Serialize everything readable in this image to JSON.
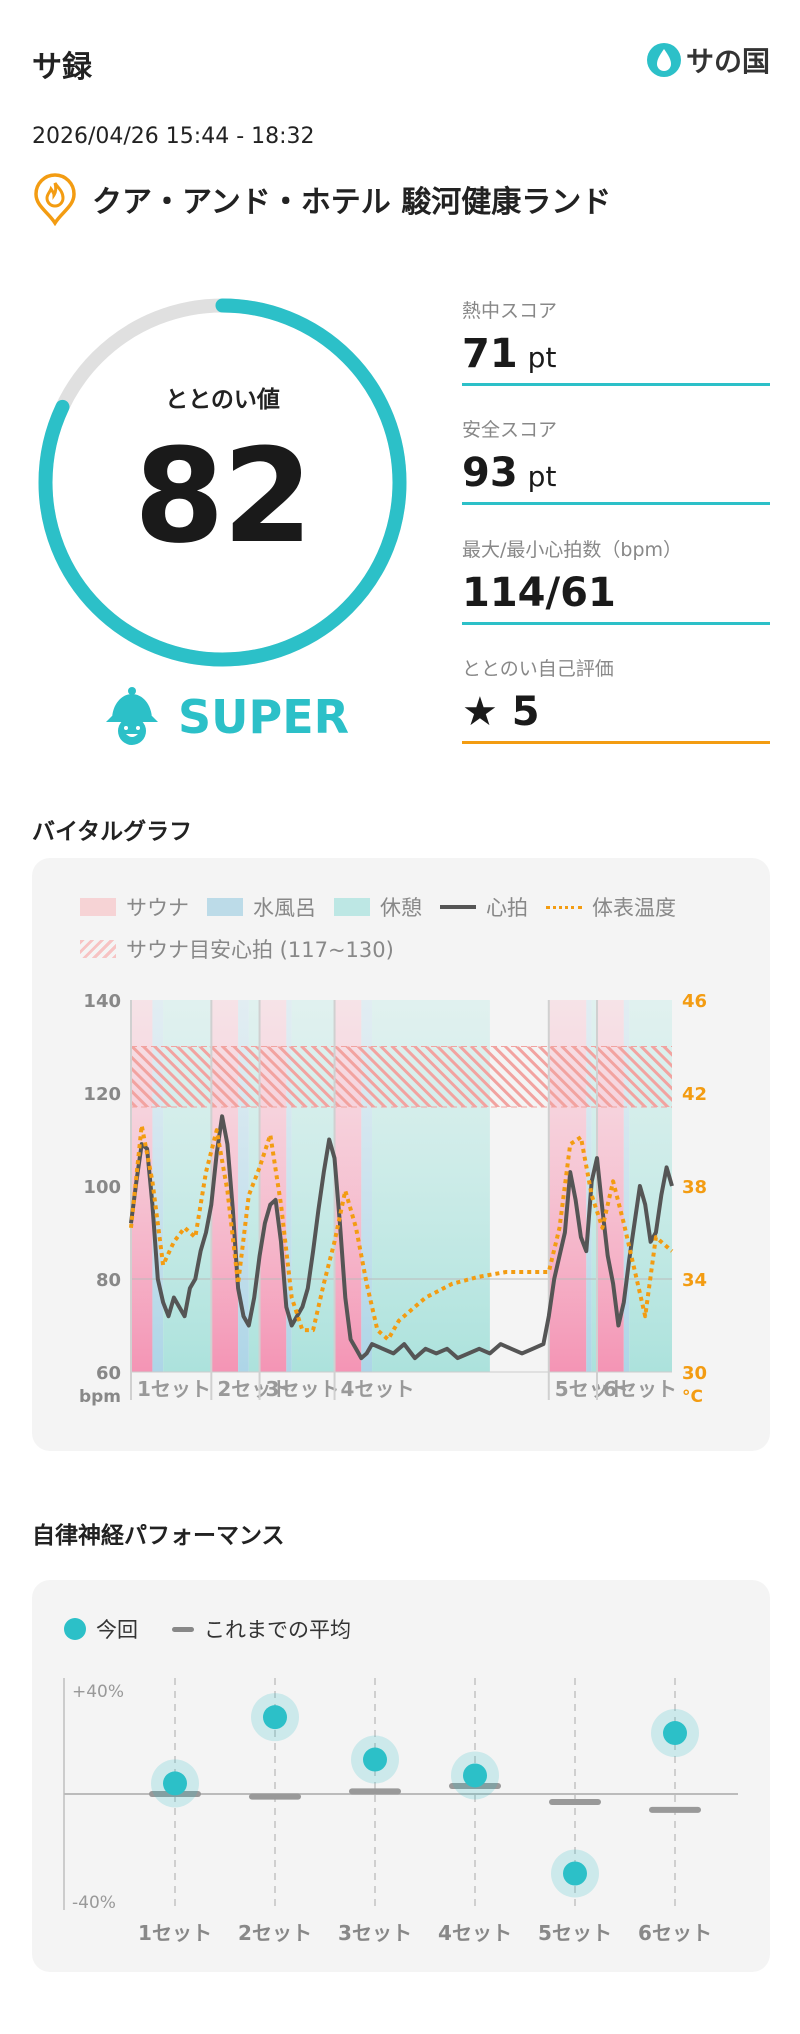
{
  "header": {
    "app_title": "サ録",
    "logo_text": "サの国",
    "logo_icon": "drop-icon"
  },
  "session": {
    "datetime": "2026/04/26 15:44 - 18:32",
    "facility_icon": "sauna-flame-pin-icon",
    "facility": "クア・アンド・ホテル 駿河健康ランド"
  },
  "totonoi": {
    "label": "ととのい値",
    "value": "82",
    "grade": "SUPER",
    "grade_icon": "sauna-hat-mascot-icon",
    "score_fraction": 0.82
  },
  "stats": [
    {
      "label": "熱中スコア",
      "value": "71",
      "unit": "pt"
    },
    {
      "label": "安全スコア",
      "value": "93",
      "unit": "pt"
    },
    {
      "label": "最大/最小心拍数（bpm）",
      "value": "114/61",
      "unit": ""
    },
    {
      "label": "ととのい自己評価",
      "value": "★ 5",
      "unit": ""
    }
  ],
  "colors": {
    "accent": "#2cc0c8",
    "orange": "#f39c12",
    "sauna": "#f6d3d5",
    "water": "#bcdbe8",
    "rest": "#bde7e4"
  },
  "vital": {
    "title": "バイタルグラフ",
    "legend": {
      "sauna": "サウナ",
      "water": "水風呂",
      "rest": "休憩",
      "hr": "心拍",
      "temp": "体表温度",
      "target": "サウナ目安心拍 (117~130)"
    }
  },
  "autonomic": {
    "title": "自律神経パフォーマンス",
    "legend": {
      "current": "今回",
      "average": "これまでの平均"
    }
  },
  "chart_data": [
    {
      "type": "line",
      "title": "バイタルグラフ",
      "ylabel_left": "bpm",
      "ylabel_right": "°C",
      "ylim_left": [
        60,
        140
      ],
      "ylim_right": [
        30,
        46
      ],
      "yticks_left": [
        "60",
        "80",
        "100",
        "120",
        "140"
      ],
      "yticks_right": [
        "30",
        "34",
        "38",
        "42",
        "46"
      ],
      "x_range_min": [
        0,
        168
      ],
      "target_band": [
        117,
        130
      ],
      "phases": [
        {
          "kind": "sauna",
          "start": 0,
          "end": 4
        },
        {
          "kind": "water",
          "start": 4,
          "end": 6
        },
        {
          "kind": "rest",
          "start": 6,
          "end": 15
        },
        {
          "kind": "sauna",
          "start": 15,
          "end": 20
        },
        {
          "kind": "water",
          "start": 20,
          "end": 22
        },
        {
          "kind": "rest",
          "start": 22,
          "end": 24
        },
        {
          "kind": "sauna",
          "start": 24,
          "end": 29
        },
        {
          "kind": "water",
          "start": 29,
          "end": 30
        },
        {
          "kind": "rest",
          "start": 30,
          "end": 38
        },
        {
          "kind": "sauna",
          "start": 38,
          "end": 43
        },
        {
          "kind": "water",
          "start": 43,
          "end": 45
        },
        {
          "kind": "rest",
          "start": 45,
          "end": 67
        },
        {
          "kind": "sauna",
          "start": 78,
          "end": 85
        },
        {
          "kind": "water",
          "start": 85,
          "end": 86
        },
        {
          "kind": "rest",
          "start": 86,
          "end": 87
        },
        {
          "kind": "sauna",
          "start": 87,
          "end": 92
        },
        {
          "kind": "water",
          "start": 92,
          "end": 93
        },
        {
          "kind": "rest",
          "start": 93,
          "end": 101
        }
      ],
      "set_markers": [
        {
          "label": "1セット",
          "x": 0
        },
        {
          "label": "2セット",
          "x": 15
        },
        {
          "label": "3セット",
          "x": 24
        },
        {
          "label": "4セット",
          "x": 38
        },
        {
          "label": "5セット",
          "x": 78
        },
        {
          "label": "6セット",
          "x": 87
        }
      ],
      "series": [
        {
          "name": "心拍",
          "axis": "left",
          "x": [
            0,
            1,
            2,
            3,
            4,
            5,
            6,
            7,
            8,
            9,
            10,
            11,
            12,
            13,
            14,
            15,
            16,
            17,
            18,
            19,
            20,
            21,
            22,
            23,
            24,
            25,
            26,
            27,
            28,
            29,
            30,
            31,
            32,
            33,
            34,
            35,
            36,
            37,
            38,
            39,
            40,
            41,
            42,
            43,
            44,
            45,
            47,
            49,
            51,
            53,
            55,
            57,
            59,
            61,
            63,
            65,
            67,
            69,
            71,
            73,
            75,
            77,
            78,
            79,
            80,
            81,
            82,
            83,
            84,
            85,
            86,
            87,
            88,
            89,
            90,
            91,
            92,
            93,
            94,
            95,
            96,
            97,
            98,
            99,
            100,
            101
          ],
          "values": [
            92,
            101,
            109,
            108,
            96,
            80,
            75,
            72,
            76,
            74,
            72,
            78,
            80,
            86,
            90,
            96,
            107,
            115,
            109,
            95,
            78,
            72,
            70,
            76,
            85,
            92,
            96,
            97,
            88,
            74,
            70,
            72,
            74,
            78,
            86,
            95,
            103,
            110,
            106,
            92,
            76,
            67,
            65,
            63,
            64,
            66,
            65,
            64,
            66,
            63,
            65,
            64,
            65,
            63,
            64,
            65,
            64,
            66,
            65,
            64,
            65,
            66,
            72,
            80,
            85,
            90,
            103,
            97,
            89,
            86,
            101,
            106,
            95,
            85,
            79,
            70,
            75,
            84,
            92,
            100,
            96,
            88,
            90,
            98,
            104,
            100
          ]
        },
        {
          "name": "体表温度",
          "axis": "right",
          "x": [
            0,
            2,
            4,
            6,
            8,
            10,
            12,
            14,
            16,
            18,
            20,
            22,
            24,
            26,
            28,
            30,
            32,
            34,
            36,
            38,
            40,
            42,
            44,
            46,
            48,
            50,
            55,
            60,
            65,
            70,
            75,
            78,
            80,
            82,
            84,
            86,
            88,
            90,
            92,
            94,
            96,
            98,
            101
          ],
          "values": [
            36.2,
            40.6,
            38.2,
            34.6,
            35.6,
            36.2,
            35.8,
            38.6,
            40.4,
            37.8,
            33.8,
            37.6,
            38.8,
            40.2,
            37.2,
            33.2,
            31.8,
            31.8,
            33.8,
            35.6,
            37.8,
            36.2,
            33.8,
            31.8,
            31.4,
            32.2,
            33.2,
            33.8,
            34.1,
            34.3,
            34.3,
            34.3,
            36.2,
            39.8,
            40.1,
            37.6,
            36.2,
            38.2,
            36.4,
            34.4,
            32.4,
            35.8,
            35.2
          ]
        }
      ]
    },
    {
      "type": "scatter",
      "title": "自律神経パフォーマンス",
      "ylim": [
        -40,
        40
      ],
      "yticks": [
        "+40%",
        "-40%"
      ],
      "categories": [
        "1セット",
        "2セット",
        "3セット",
        "4セット",
        "5セット",
        "6セット"
      ],
      "series": [
        {
          "name": "今回",
          "values": [
            4,
            29,
            13,
            7,
            -30,
            23
          ]
        },
        {
          "name": "これまでの平均",
          "values": [
            0,
            -1,
            1,
            3,
            -3,
            -6
          ]
        }
      ]
    }
  ]
}
